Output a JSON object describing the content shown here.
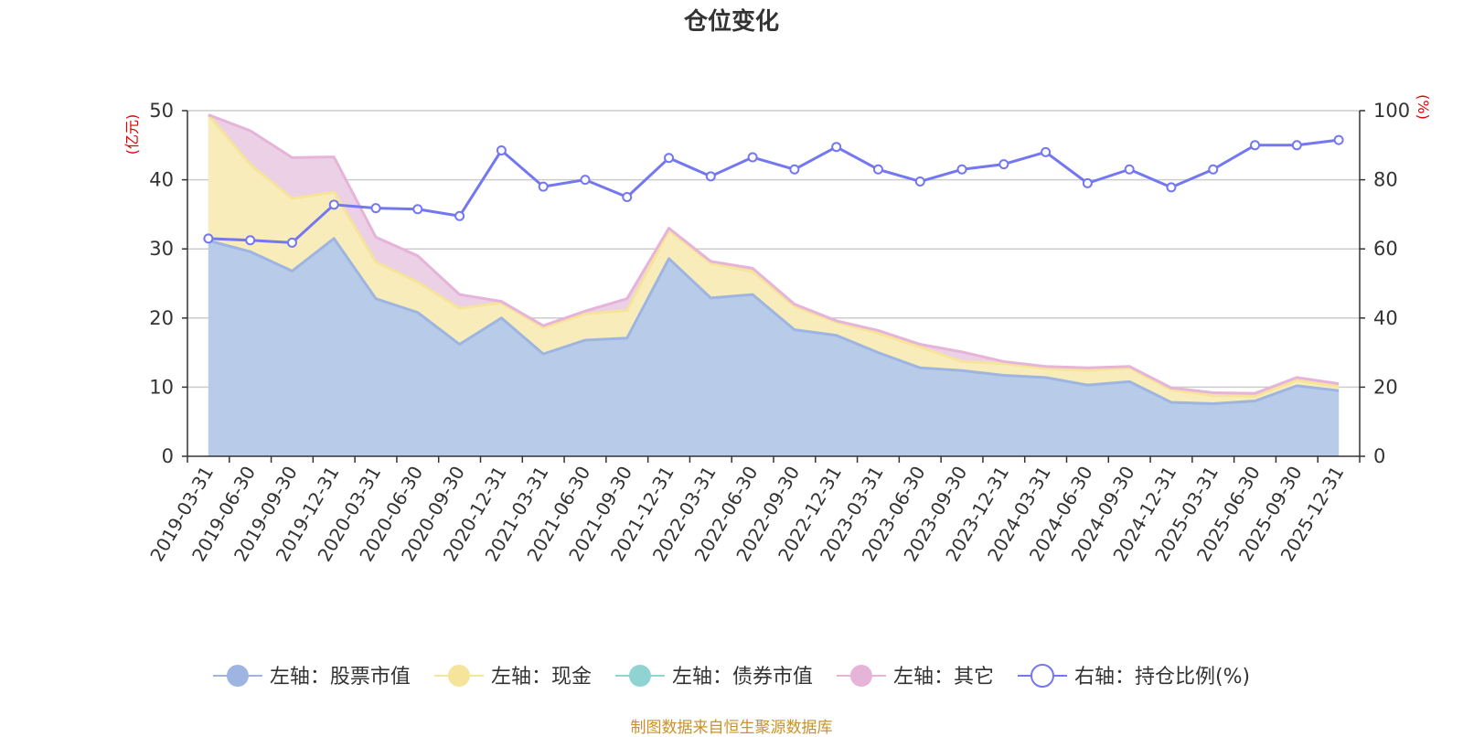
{
  "chart_data": {
    "type": "area",
    "title": "仓位变化",
    "left_axis_label": "(亿元)",
    "right_axis_label": "(%)",
    "left_ylim": [
      0,
      50
    ],
    "right_ylim": [
      0,
      100
    ],
    "left_ticks": [
      0,
      10,
      20,
      30,
      40,
      50
    ],
    "right_ticks": [
      0,
      20,
      40,
      60,
      80,
      100
    ],
    "categories": [
      "2019-03-31",
      "2019-06-30",
      "2019-09-30",
      "2019-12-31",
      "2020-03-31",
      "2020-06-30",
      "2020-09-30",
      "2020-12-31",
      "2021-03-31",
      "2021-06-30",
      "2021-09-30",
      "2021-12-31",
      "2022-03-31",
      "2022-06-30",
      "2022-09-30",
      "2022-12-31",
      "2023-03-31",
      "2023-06-30",
      "2023-09-30",
      "2023-12-31",
      "2024-03-31",
      "2024-06-30",
      "2024-09-30",
      "2024-12-31",
      "2025-03-31",
      "2025-06-30",
      "2025-09-30",
      "2025-12-31"
    ],
    "series": [
      {
        "name": "左轴：股票市值",
        "axis": "left",
        "kind": "stack-area",
        "color": "#9db5e0",
        "fill": "#b8cbe9",
        "values": [
          31.2,
          29.6,
          26.8,
          31.5,
          22.8,
          20.8,
          16.2,
          20.0,
          14.8,
          16.8,
          17.1,
          28.6,
          22.9,
          23.4,
          18.3,
          17.5,
          15.0,
          12.8,
          12.4,
          11.7,
          11.4,
          10.3,
          10.8,
          7.8,
          7.6,
          8.0,
          10.2,
          9.5
        ]
      },
      {
        "name": "左轴：现金",
        "axis": "left",
        "kind": "stack-area",
        "color": "#f5e49a",
        "fill": "#f8ecba",
        "values": [
          18.2,
          12.6,
          10.5,
          6.7,
          5.3,
          4.4,
          5.2,
          2.2,
          3.8,
          3.8,
          4.0,
          4.1,
          5.0,
          3.3,
          3.4,
          1.9,
          2.8,
          3.0,
          1.3,
          1.7,
          1.3,
          2.1,
          2.0,
          1.8,
          1.2,
          0.7,
          0.8,
          0.6
        ]
      },
      {
        "name": "左轴：债券市值",
        "axis": "left",
        "kind": "stack-area",
        "color": "#8fd3d3",
        "fill": "#aadfdf",
        "values": [
          0,
          0,
          0,
          0,
          0,
          0,
          0,
          0,
          0,
          0,
          0,
          0,
          0,
          0,
          0,
          0,
          0,
          0,
          0,
          0,
          0,
          0,
          0,
          0,
          0,
          0,
          0,
          0
        ]
      },
      {
        "name": "左轴：其它",
        "axis": "left",
        "kind": "stack-area",
        "color": "#e6b3d9",
        "fill": "#ecd0e5",
        "values": [
          0,
          4.9,
          5.9,
          5.1,
          3.6,
          3.8,
          2.0,
          0.2,
          0.3,
          0.4,
          1.7,
          0.3,
          0.3,
          0.5,
          0.3,
          0.2,
          0.4,
          0.4,
          1.4,
          0.3,
          0.3,
          0.4,
          0.2,
          0.3,
          0.4,
          0.4,
          0.4,
          0.4
        ]
      },
      {
        "name": "右轴：持仓比例(%)",
        "axis": "right",
        "kind": "line",
        "color": "#7377f1",
        "values": [
          63.0,
          62.5,
          61.8,
          72.8,
          71.8,
          71.5,
          69.5,
          88.5,
          78.0,
          80.0,
          75.0,
          86.3,
          81.0,
          86.5,
          83.0,
          89.5,
          83.0,
          79.5,
          83.0,
          84.5,
          88.0,
          79.0,
          83.0,
          77.8,
          83.0,
          90.0,
          90.0,
          91.5
        ]
      }
    ],
    "legend_position": "bottom",
    "grid": true
  },
  "source_text": "制图数据来自恒生聚源数据库"
}
